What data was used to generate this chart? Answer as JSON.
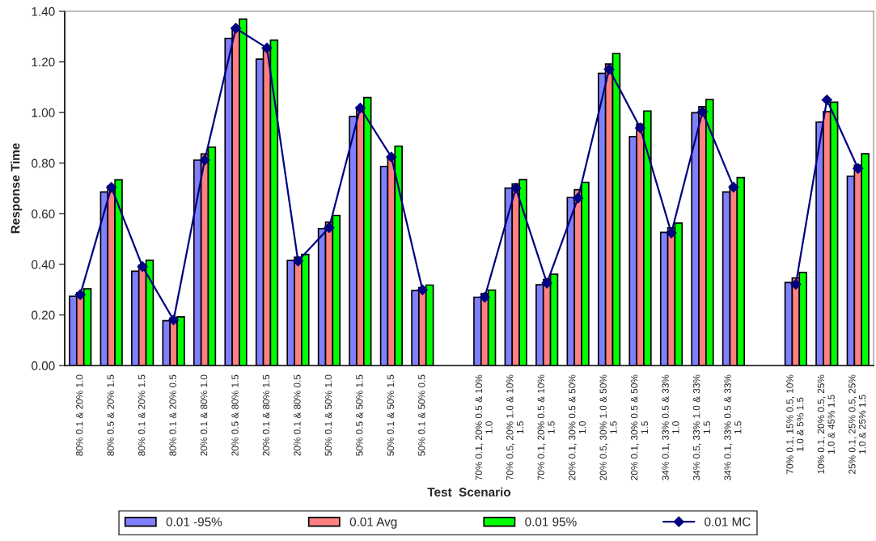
{
  "chart_data": {
    "type": "bar",
    "xlabel": "Test  Scenario",
    "ylabel": "Response Time",
    "categories": [
      "80% 0.1 & 20% 1.0",
      "80% 0.5 & 20% 1.5",
      "80% 0.1 & 20% 1.5",
      "80% 0.1 & 20% 0.5",
      "20% 0.1 & 80% 1.0",
      "20% 0.5 & 80% 1.5",
      "20% 0.1 & 80% 1.5",
      "20% 0.1 & 80% 0.5",
      "50% 0.1 & 50% 1.0",
      "50% 0.5 & 50% 1.5",
      "50% 0.1 & 50% 1.5",
      "50% 0.1 & 50% 0.5",
      null,
      "70% 0.1, 20% 0.5 & 10%\n1.0",
      "70% 0.5, 20% 1.0 & 10%\n1.5",
      "70% 0.1, 20% 0.5 & 10%\n1.5",
      "20% 0.1, 30% 0.5 & 50%\n1.0",
      "20% 0.5, 30% 1.0 & 50%\n1.5",
      "20% 0.1, 30% 0.5 & 50%\n1.5",
      "34% 0.1, 33% 0.5 & 33%\n1.0",
      "34% 0.5, 33% 1.0 & 33%\n1.5",
      "34% 0.1, 33% 0.5 & 33%\n1.5",
      null,
      "70% 0.1, 15% 0.5, 10%\n1.0 & 5% 1.5",
      "10% 0.1, 20% 0.5, 25%\n1.0 & 45% 1.5",
      "25% 0.1, 25% 0.5, 25%\n1.0 & 25% 1.5"
    ],
    "series": [
      {
        "name": "0.01 -95%",
        "color": "#8080ff",
        "values": [
          0.274,
          0.686,
          0.373,
          0.177,
          0.812,
          1.293,
          1.211,
          0.415,
          0.541,
          0.984,
          0.787,
          0.296,
          null,
          0.27,
          0.701,
          0.319,
          0.664,
          1.155,
          0.905,
          0.526,
          0.999,
          0.686,
          null,
          0.328,
          0.962,
          0.748
        ]
      },
      {
        "name": "0.01 Avg",
        "color": "#ff8080",
        "values": [
          0.288,
          0.71,
          0.396,
          0.188,
          0.836,
          1.333,
          1.255,
          0.428,
          0.567,
          1.021,
          0.827,
          0.308,
          null,
          0.284,
          0.718,
          0.34,
          0.695,
          1.192,
          0.955,
          0.544,
          1.023,
          0.711,
          null,
          0.346,
          1.003,
          0.792
        ]
      },
      {
        "name": "0.01 95%",
        "color": "#00ff00",
        "values": [
          0.303,
          0.734,
          0.416,
          0.192,
          0.863,
          1.369,
          1.286,
          0.439,
          0.593,
          1.059,
          0.867,
          0.318,
          null,
          0.298,
          0.735,
          0.361,
          0.724,
          1.233,
          1.006,
          0.563,
          1.051,
          0.743,
          null,
          0.368,
          1.041,
          0.837
        ]
      },
      {
        "name": "0.01 MC",
        "color": "#000080",
        "type": "line",
        "marker": "diamond",
        "line_style": "solid",
        "values": [
          0.28,
          0.704,
          0.391,
          0.18,
          0.812,
          1.333,
          1.255,
          0.413,
          0.545,
          1.018,
          0.824,
          0.299,
          null,
          0.27,
          0.701,
          0.326,
          0.662,
          1.171,
          0.939,
          0.524,
          1.003,
          0.705,
          null,
          0.321,
          1.05,
          0.779
        ]
      }
    ],
    "ylim": [
      0,
      1.4
    ],
    "yticks": [
      {
        "value": 0,
        "label": "0.00"
      },
      {
        "value": 0.2,
        "label": "0.20"
      },
      {
        "value": 0.4,
        "label": "0.40"
      },
      {
        "value": 0.6,
        "label": "0.60"
      },
      {
        "value": 0.8,
        "label": "0.80"
      },
      {
        "value": 1.0,
        "label": "1.00"
      },
      {
        "value": 1.2,
        "label": "1.20"
      },
      {
        "value": 1.4,
        "label": "1.40"
      }
    ],
    "grid": false,
    "legend": "bottom"
  }
}
